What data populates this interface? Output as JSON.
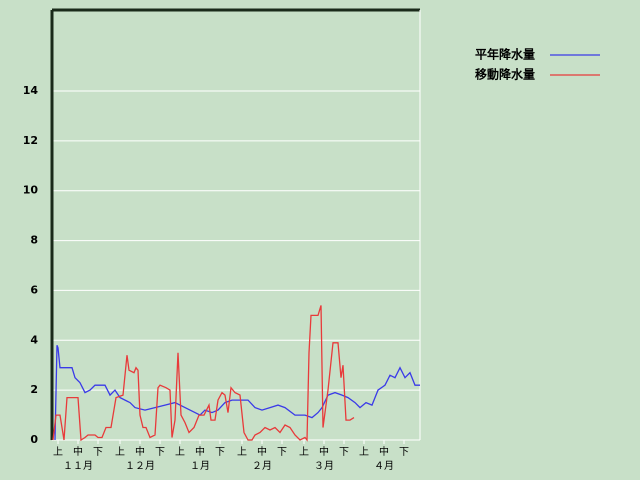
{
  "chart_data": {
    "type": "line",
    "ylim": [
      0,
      17.25
    ],
    "yticks": [
      0,
      2,
      4,
      6,
      8,
      10,
      12,
      14
    ],
    "grid": true,
    "xlim": [
      0,
      184
    ],
    "xticks": [
      {
        "value": 3,
        "label": "上"
      },
      {
        "value": 13,
        "label": "中"
      },
      {
        "value": 23,
        "label": "下"
      },
      {
        "value": 34,
        "label": "上"
      },
      {
        "value": 44,
        "label": "中"
      },
      {
        "value": 54,
        "label": "下"
      },
      {
        "value": 64,
        "label": "上"
      },
      {
        "value": 74,
        "label": "中"
      },
      {
        "value": 84,
        "label": "下"
      },
      {
        "value": 95,
        "label": "上"
      },
      {
        "value": 105,
        "label": "中"
      },
      {
        "value": 115,
        "label": "下"
      },
      {
        "value": 126,
        "label": "上"
      },
      {
        "value": 136,
        "label": "中"
      },
      {
        "value": 146,
        "label": "下"
      },
      {
        "value": 156,
        "label": "上"
      },
      {
        "value": 166,
        "label": "中"
      },
      {
        "value": 176,
        "label": "下"
      }
    ],
    "month_labels": [
      {
        "value": 13,
        "label": "１１月"
      },
      {
        "value": 44,
        "label": "１２月"
      },
      {
        "value": 74,
        "label": "１月"
      },
      {
        "value": 105,
        "label": "２月"
      },
      {
        "value": 136,
        "label": "３月"
      },
      {
        "value": 166,
        "label": "４月"
      }
    ],
    "legend": "top-right",
    "series": [
      {
        "name": "平年降水量",
        "color": "#3a3ae8",
        "x": [
          1.5,
          2.5,
          3,
          4,
          10,
          11.5,
          14,
          16.5,
          19,
          21.5,
          26.5,
          29,
          31.5,
          34,
          39,
          41.5,
          46.5,
          51.5,
          56.5,
          61.5,
          66.5,
          71.5,
          74,
          76.5,
          80,
          83,
          86.5,
          90,
          94,
          98,
          101.5,
          105,
          109,
          113,
          116.5,
          121.5,
          126.5,
          130,
          133,
          135,
          138,
          141.5,
          145,
          148,
          151.5,
          154,
          157,
          160,
          163,
          166.5,
          169,
          171.5,
          174,
          176.5,
          179,
          181.5,
          184
        ],
        "values": [
          0,
          3.8,
          3.7,
          2.9,
          2.9,
          2.5,
          2.3,
          1.9,
          2.0,
          2.2,
          2.2,
          1.8,
          2.0,
          1.7,
          1.5,
          1.3,
          1.2,
          1.3,
          1.4,
          1.5,
          1.3,
          1.1,
          1.0,
          1.2,
          1.1,
          1.2,
          1.5,
          1.6,
          1.6,
          1.6,
          1.3,
          1.2,
          1.3,
          1.4,
          1.3,
          1.0,
          1.0,
          0.9,
          1.1,
          1.3,
          1.8,
          1.9,
          1.8,
          1.7,
          1.5,
          1.3,
          1.5,
          1.4,
          2.0,
          2.2,
          2.6,
          2.5,
          2.9,
          2.5,
          2.7,
          2.2,
          2.2
        ]
      },
      {
        "name": "移動降水量",
        "color": "#e83a3a",
        "x": [
          0.5,
          2,
          4,
          6,
          7.5,
          13,
          14.5,
          16.5,
          18,
          21.5,
          23,
          25,
          27,
          29.5,
          32,
          35.5,
          37.5,
          38.5,
          41,
          42,
          43,
          44,
          45.5,
          47,
          49,
          51.5,
          53,
          54,
          57,
          59,
          60,
          61.5,
          63,
          64.5,
          66.5,
          68.5,
          71,
          73.5,
          76,
          78.5,
          79.5,
          81.5,
          83,
          85,
          86.5,
          88,
          89.5,
          91.5,
          94,
          96,
          98,
          100,
          101.5,
          104,
          106.5,
          109,
          111.5,
          114,
          116.5,
          119,
          121.5,
          124,
          126.5,
          127.5,
          128.5,
          129.5,
          133,
          134.5,
          135.5,
          138,
          140.5,
          143,
          144.5,
          145.5,
          147,
          149,
          151
        ],
        "values": [
          0,
          1.0,
          1.0,
          0,
          1.7,
          1.7,
          0,
          0.1,
          0.2,
          0.2,
          0.1,
          0.1,
          0.5,
          0.5,
          1.7,
          1.8,
          3.4,
          2.8,
          2.7,
          2.9,
          2.8,
          1.0,
          0.5,
          0.5,
          0.1,
          0.2,
          2.1,
          2.2,
          2.1,
          2.0,
          0.1,
          0.8,
          3.5,
          1.0,
          0.7,
          0.3,
          0.5,
          1.0,
          1.0,
          1.4,
          0.8,
          0.8,
          1.6,
          1.9,
          1.8,
          1.1,
          2.1,
          1.9,
          1.8,
          0.3,
          0,
          0,
          0.2,
          0.3,
          0.5,
          0.4,
          0.5,
          0.3,
          0.6,
          0.5,
          0.2,
          0,
          0.1,
          0,
          3.5,
          5.0,
          5.0,
          5.4,
          0.5,
          2.0,
          3.9,
          3.9,
          2.5,
          3.0,
          0.8,
          0.8,
          0.9
        ]
      }
    ]
  }
}
